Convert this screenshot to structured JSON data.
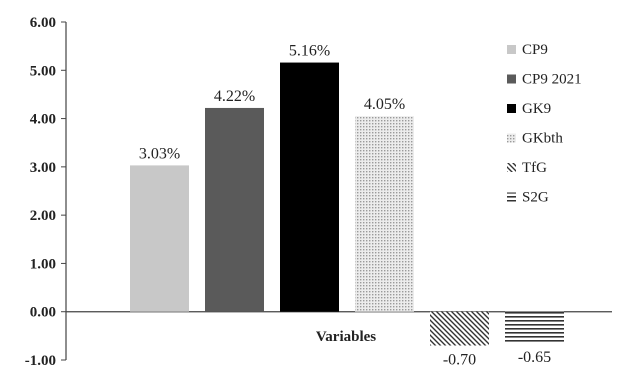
{
  "chart_data": {
    "type": "bar",
    "xlabel": "Variables",
    "ylim": [
      -1,
      6
    ],
    "yticks": [
      "-1.00",
      "0.00",
      "1.00",
      "2.00",
      "3.00",
      "4.00",
      "5.00",
      "6.00"
    ],
    "grid": false,
    "legend_position": "right",
    "series": [
      {
        "name": "CP9",
        "value": 3.03,
        "label": "3.03%",
        "fill": "solid",
        "color": "#c8c8c8"
      },
      {
        "name": "CP9 2021",
        "value": 4.22,
        "label": "4.22%",
        "fill": "solid",
        "color": "#5a5a5a"
      },
      {
        "name": "GK9",
        "value": 5.16,
        "label": "5.16%",
        "fill": "solid",
        "color": "#000000"
      },
      {
        "name": "GKbth",
        "value": 4.05,
        "label": "4.05%",
        "fill": "dots",
        "color": "#bdbdbd"
      },
      {
        "name": "TfG",
        "value": -0.7,
        "label": "-0.70",
        "fill": "diagonal",
        "color": "#333333"
      },
      {
        "name": "S2G",
        "value": -0.65,
        "label": "-0.65",
        "fill": "horizontal",
        "color": "#333333"
      }
    ]
  }
}
